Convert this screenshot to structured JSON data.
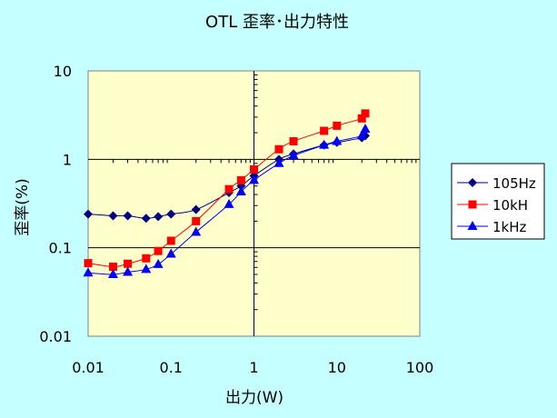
{
  "colors": {
    "background": "#C6FFFF",
    "plot_area": "#FFFFCC",
    "gridline": "#000000",
    "series_105Hz": "#000080",
    "series_10kH": "#FF0000",
    "series_1kHz": "#0000FF"
  },
  "chart_data": {
    "type": "scatter",
    "title": "OTL 歪率･出力特性",
    "xlabel": "出力(W)",
    "ylabel": "歪率(%)",
    "x_scale": "log",
    "y_scale": "log",
    "xlim": [
      0.01,
      100
    ],
    "ylim": [
      0.01,
      10
    ],
    "x_ticks": [
      "0.01",
      "0.1",
      "1",
      "10",
      "100"
    ],
    "y_ticks": [
      "0.01",
      "0.1",
      "1",
      "10"
    ],
    "grid": "major",
    "legend_position": "right",
    "series": [
      {
        "name": "105Hz",
        "marker": "diamond",
        "color": "#000080",
        "x": [
          0.01,
          0.02,
          0.03,
          0.05,
          0.07,
          0.1,
          0.2,
          0.5,
          0.7,
          1,
          2,
          3,
          7,
          10,
          20,
          22
        ],
        "y": [
          0.24,
          0.23,
          0.23,
          0.215,
          0.225,
          0.24,
          0.27,
          0.42,
          0.5,
          0.65,
          1.0,
          1.15,
          1.45,
          1.55,
          1.75,
          1.85
        ]
      },
      {
        "name": "10kH",
        "marker": "square",
        "color": "#FF0000",
        "x": [
          0.01,
          0.02,
          0.03,
          0.05,
          0.07,
          0.1,
          0.2,
          0.5,
          0.7,
          1,
          2,
          3,
          7,
          10,
          20,
          22
        ],
        "y": [
          0.067,
          0.061,
          0.066,
          0.076,
          0.092,
          0.12,
          0.2,
          0.46,
          0.58,
          0.77,
          1.3,
          1.6,
          2.1,
          2.4,
          2.9,
          3.3
        ]
      },
      {
        "name": "1kHz",
        "marker": "triangle",
        "color": "#0000FF",
        "x": [
          0.01,
          0.02,
          0.03,
          0.05,
          0.07,
          0.1,
          0.2,
          0.5,
          0.7,
          1,
          2,
          3,
          7,
          10,
          20,
          22
        ],
        "y": [
          0.052,
          0.05,
          0.053,
          0.057,
          0.065,
          0.085,
          0.15,
          0.31,
          0.43,
          0.58,
          0.9,
          1.1,
          1.45,
          1.6,
          1.85,
          2.2
        ]
      }
    ]
  }
}
